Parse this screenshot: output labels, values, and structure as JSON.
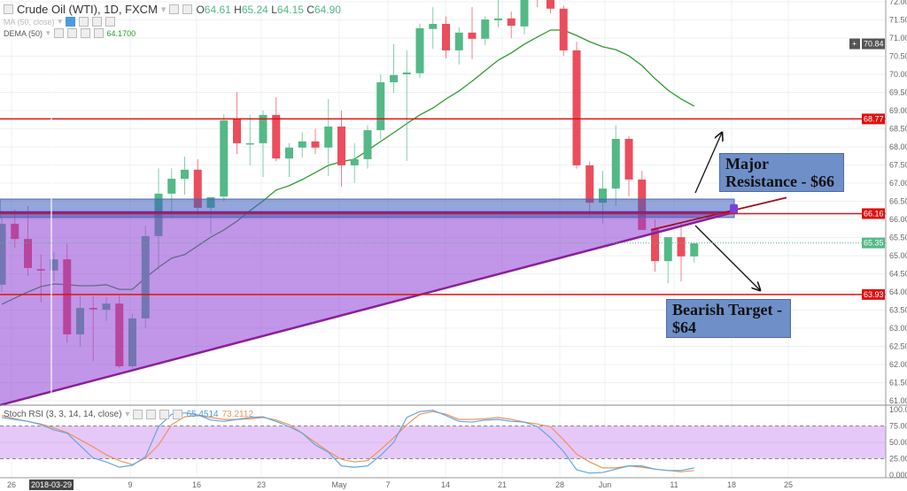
{
  "header": {
    "symbol_title": "Crude Oil (WTI), 1D, FXCM",
    "open_label": "O",
    "open": "64.61",
    "high_label": "H",
    "high": "65.24",
    "low_label": "L",
    "low": "64.15",
    "close_label": "C",
    "close": "64.90",
    "ma_label": "MA (50, close)",
    "dema_label": "DEMA (50)",
    "dema_value": "64.1700",
    "stoch_label": "Stoch RSI (3, 3, 14, 14, close)",
    "stoch_k_value": "65.4514",
    "stoch_d_value": "73.2112"
  },
  "annotations": {
    "resistance": "Major Resistance - $66",
    "target": "Bearish Target - $64"
  },
  "colors": {
    "up": "#53b987",
    "down": "#eb4d5c",
    "dema": "#2e9b2e",
    "level_line": "#e01010",
    "zone": "#3c5cc0",
    "triangle": "#8e3fd6",
    "stoch_k": "#5fa8e0",
    "stoch_d": "#f0925a"
  },
  "chart_data": [
    {
      "type": "candlestick",
      "title": "Crude Oil (WTI), 1D, FXCM",
      "ylim": [
        61.0,
        72.0
      ],
      "y_ticks": [
        "72.00",
        "71.50",
        "71.00",
        "70.50",
        "70.00",
        "69.50",
        "69.00",
        "68.50",
        "68.00",
        "67.50",
        "67.00",
        "66.50",
        "66.00",
        "65.50",
        "65.00",
        "64.50",
        "64.00",
        "63.50",
        "63.00",
        "62.50",
        "62.00",
        "61.50",
        "61.00"
      ],
      "x_ticks": [
        "26",
        "2018-03-29",
        "9",
        "16",
        "23",
        "May",
        "7",
        "14",
        "21",
        "28",
        "Jun",
        "11",
        "18",
        "25"
      ],
      "crosshair_date": "2018-03-29",
      "grid": true,
      "candles_ohlc": [
        [
          64.2,
          66.07,
          64.0,
          65.88
        ],
        [
          65.88,
          66.27,
          65.22,
          65.46
        ],
        [
          65.46,
          66.37,
          64.44,
          64.66
        ],
        [
          64.63,
          65.03,
          63.71,
          64.59
        ],
        [
          64.59,
          65.1,
          64.3,
          64.9
        ],
        [
          64.9,
          65.34,
          62.6,
          62.83
        ],
        [
          62.83,
          63.9,
          62.5,
          63.56
        ],
        [
          63.56,
          63.88,
          62.1,
          63.52
        ],
        [
          63.51,
          63.85,
          63.2,
          63.68
        ],
        [
          63.68,
          63.9,
          61.9,
          61.95
        ],
        [
          61.95,
          63.4,
          61.9,
          63.27
        ],
        [
          63.27,
          65.83,
          63.0,
          65.54
        ],
        [
          65.54,
          67.41,
          64.6,
          66.71
        ],
        [
          66.71,
          67.41,
          66.02,
          67.12
        ],
        [
          67.12,
          67.73,
          66.68,
          67.37
        ],
        [
          67.37,
          67.66,
          66.12,
          66.32
        ],
        [
          66.32,
          66.6,
          65.59,
          66.61
        ],
        [
          66.63,
          68.9,
          66.5,
          68.73
        ],
        [
          68.78,
          69.51,
          67.8,
          68.1
        ],
        [
          68.1,
          68.88,
          67.49,
          68.1
        ],
        [
          68.1,
          69.0,
          67.17,
          68.88
        ],
        [
          68.88,
          69.37,
          67.6,
          67.68
        ],
        [
          67.68,
          68.1,
          67.17,
          67.98
        ],
        [
          67.98,
          68.4,
          67.7,
          68.15
        ],
        [
          68.15,
          68.5,
          67.8,
          67.98
        ],
        [
          67.98,
          69.32,
          67.2,
          68.56
        ],
        [
          68.56,
          69.0,
          66.9,
          67.49
        ],
        [
          67.49,
          68.1,
          67.0,
          67.66
        ],
        [
          67.66,
          68.6,
          67.4,
          68.46
        ],
        [
          68.46,
          70.0,
          68.2,
          69.78
        ],
        [
          69.78,
          70.83,
          69.49,
          69.98
        ],
        [
          70.0,
          70.66,
          67.61,
          70.05
        ],
        [
          70.03,
          71.4,
          69.9,
          71.27
        ],
        [
          71.25,
          71.85,
          70.7,
          71.39
        ],
        [
          71.39,
          71.59,
          70.44,
          70.66
        ],
        [
          70.66,
          71.3,
          70.27,
          71.15
        ],
        [
          71.15,
          71.85,
          70.42,
          70.98
        ],
        [
          70.98,
          71.6,
          70.8,
          71.51
        ],
        [
          71.49,
          72.05,
          71.3,
          71.54
        ],
        [
          71.54,
          71.73,
          71.0,
          71.34
        ],
        [
          71.32,
          72.3,
          71.1,
          72.1
        ],
        [
          72.4,
          72.6,
          71.85,
          72.1
        ],
        [
          72.1,
          72.3,
          71.68,
          71.81
        ],
        [
          71.81,
          71.9,
          70.51,
          70.66
        ],
        [
          70.66,
          70.9,
          67.4,
          67.49
        ],
        [
          67.49,
          67.6,
          66.07,
          66.46
        ],
        [
          66.46,
          67.34,
          65.88,
          66.85
        ],
        [
          66.85,
          68.6,
          66.37,
          68.22
        ],
        [
          68.22,
          68.3,
          66.63,
          67.1
        ],
        [
          67.1,
          67.34,
          65.71,
          65.71
        ],
        [
          65.73,
          66.0,
          64.56,
          64.85
        ],
        [
          64.85,
          65.51,
          64.24,
          65.51
        ],
        [
          65.51,
          65.9,
          64.29,
          64.98
        ],
        [
          64.98,
          65.34,
          64.81,
          65.34
        ]
      ],
      "dema_50": [
        63.66,
        63.83,
        64.0,
        64.15,
        64.22,
        64.2,
        64.17,
        64.17,
        64.2,
        64.07,
        64.07,
        64.39,
        64.68,
        64.93,
        65.03,
        65.27,
        65.51,
        65.71,
        65.95,
        66.24,
        66.51,
        66.81,
        66.93,
        67.1,
        67.29,
        67.49,
        67.59,
        67.66,
        67.9,
        68.15,
        68.39,
        68.64,
        68.88,
        69.07,
        69.32,
        69.54,
        69.81,
        70.1,
        70.39,
        70.59,
        70.83,
        71.03,
        71.22,
        71.22,
        71.07,
        70.9,
        70.76,
        70.68,
        70.51,
        70.24,
        69.88,
        69.56,
        69.32,
        69.12
      ],
      "horizontal_levels": [
        "68.77",
        "66.16",
        "63.93"
      ],
      "resistance_zone": [
        66.15,
        66.56
      ],
      "trendline": {
        "start": 60.88,
        "apex": 66.2,
        "extension_end": 66.6
      },
      "price_labels": {
        "crosshair": "70.84",
        "last": "65.35"
      }
    },
    {
      "type": "line",
      "title": "Stoch RSI (3, 3, 14, 14, close)",
      "ylim": [
        0,
        100
      ],
      "y_ticks": [
        "100.00",
        "75.000",
        "50.000",
        "25.000",
        "0.0000"
      ],
      "bands": [
        25,
        75
      ],
      "series": [
        {
          "name": "K",
          "values": [
            88,
            85,
            82,
            77,
            69,
            64,
            45,
            26,
            20,
            12,
            15,
            28,
            74,
            93,
            95,
            92,
            84,
            82,
            85,
            88,
            89,
            82,
            74,
            64,
            46,
            35,
            14,
            12,
            14,
            30,
            50,
            88,
            97,
            99,
            91,
            82,
            81,
            84,
            85,
            82,
            81,
            74,
            57,
            36,
            8,
            3,
            4,
            9,
            14,
            14,
            9,
            7,
            7,
            11
          ]
        },
        {
          "name": "D",
          "values": [
            91,
            86,
            82,
            78,
            72,
            65,
            54,
            43,
            31,
            22,
            16,
            26,
            46,
            77,
            89,
            91,
            88,
            85,
            85,
            86,
            88,
            84,
            77,
            64,
            50,
            36,
            24,
            20,
            22,
            39,
            57,
            77,
            93,
            97,
            93,
            85,
            85,
            86,
            88,
            85,
            81,
            78,
            74,
            54,
            32,
            20,
            11,
            11,
            14,
            12,
            9,
            7,
            5,
            7
          ]
        }
      ]
    }
  ]
}
